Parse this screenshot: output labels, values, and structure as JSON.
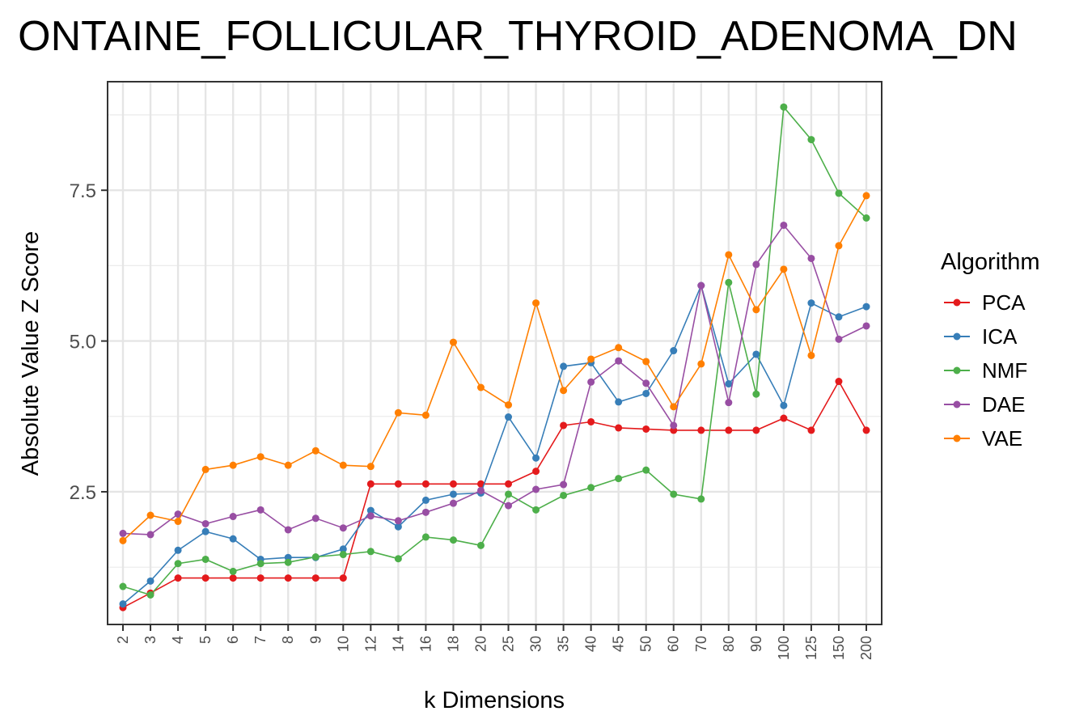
{
  "chart_data": {
    "type": "line",
    "title": "ONTAINE_FOLLICULAR_THYROID_ADENOMA_DN",
    "xlabel": "k Dimensions",
    "ylabel": "Absolute Value Z Score",
    "categories": [
      "2",
      "3",
      "4",
      "5",
      "6",
      "7",
      "8",
      "9",
      "10",
      "12",
      "14",
      "16",
      "18",
      "20",
      "25",
      "30",
      "35",
      "40",
      "45",
      "50",
      "60",
      "70",
      "80",
      "90",
      "100",
      "125",
      "150",
      "200"
    ],
    "ylim": [
      0.3,
      9.3
    ],
    "y_ticks": [
      2.5,
      5.0,
      7.5
    ],
    "y_tick_labels": [
      "2.5",
      "5.0",
      "7.5"
    ],
    "grid": true,
    "legend": {
      "title": "Algorithm",
      "position": "right"
    },
    "series": [
      {
        "name": "PCA",
        "color": "#e41a1c",
        "values": [
          0.58,
          0.82,
          1.07,
          1.07,
          1.07,
          1.07,
          1.07,
          1.07,
          1.07,
          2.63,
          2.63,
          2.63,
          2.63,
          2.63,
          2.63,
          2.84,
          3.6,
          3.66,
          3.56,
          3.54,
          3.52,
          3.52,
          3.52,
          3.52,
          3.72,
          3.52,
          4.33,
          3.52
        ]
      },
      {
        "name": "ICA",
        "color": "#377eb8",
        "values": [
          0.64,
          1.02,
          1.53,
          1.84,
          1.72,
          1.38,
          1.41,
          1.41,
          1.55,
          2.19,
          1.92,
          2.36,
          2.46,
          2.48,
          3.74,
          3.06,
          4.58,
          4.64,
          3.99,
          4.13,
          4.84,
          5.92,
          4.29,
          4.78,
          3.93,
          5.63,
          5.4,
          5.57
        ]
      },
      {
        "name": "NMF",
        "color": "#4daf4a",
        "values": [
          0.93,
          0.79,
          1.31,
          1.38,
          1.18,
          1.31,
          1.33,
          1.42,
          1.46,
          1.51,
          1.39,
          1.75,
          1.7,
          1.61,
          2.46,
          2.2,
          2.44,
          2.57,
          2.72,
          2.86,
          2.46,
          2.38,
          5.97,
          4.12,
          8.88,
          8.34,
          7.45,
          7.04
        ]
      },
      {
        "name": "DAE",
        "color": "#984ea3",
        "values": [
          1.81,
          1.79,
          2.13,
          1.97,
          2.09,
          2.2,
          1.87,
          2.06,
          1.9,
          2.1,
          2.02,
          2.16,
          2.31,
          2.52,
          2.27,
          2.54,
          2.62,
          4.32,
          4.67,
          4.3,
          3.6,
          5.92,
          3.98,
          6.27,
          6.92,
          6.37,
          5.03,
          5.25
        ]
      },
      {
        "name": "VAE",
        "color": "#ff7f00",
        "values": [
          1.69,
          2.11,
          2.01,
          2.87,
          2.94,
          3.08,
          2.94,
          3.18,
          2.94,
          2.92,
          3.81,
          3.77,
          4.98,
          4.23,
          3.94,
          5.63,
          4.18,
          4.7,
          4.89,
          4.66,
          3.91,
          4.62,
          6.43,
          5.52,
          6.19,
          4.76,
          6.58,
          7.41
        ]
      }
    ]
  }
}
